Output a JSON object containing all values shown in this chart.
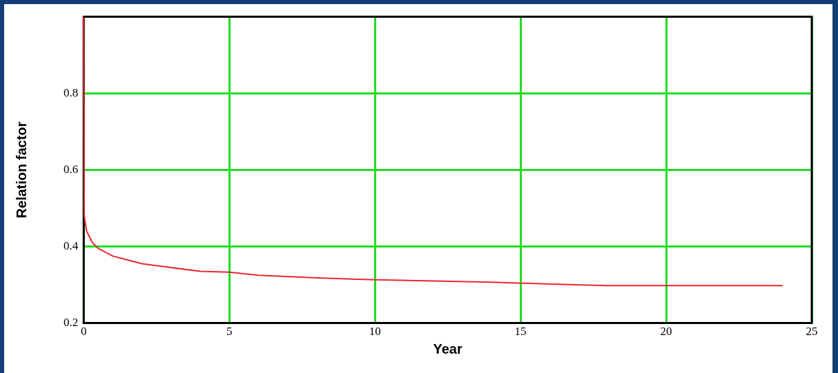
{
  "chart_data": {
    "type": "line",
    "xlabel": "Year",
    "ylabel": "Relation factor",
    "x": [
      0,
      0.02,
      0.1,
      0.3,
      0.5,
      1,
      1.5,
      2,
      3,
      4,
      5,
      6,
      8,
      10,
      12,
      14,
      16,
      18,
      20,
      24
    ],
    "series": [
      {
        "color": "#e8262e",
        "values": [
          1.0,
          0.48,
          0.44,
          0.41,
          0.395,
          0.375,
          0.365,
          0.355,
          0.345,
          0.335,
          0.333,
          0.325,
          0.318,
          0.313,
          0.31,
          0.307,
          0.302,
          0.298,
          0.298,
          0.298
        ]
      }
    ],
    "xlim": [
      0,
      25
    ],
    "xticks": [
      0,
      5,
      10,
      15,
      20,
      25
    ],
    "ylim": [
      0.2,
      1.0
    ],
    "yticks": [
      0.2,
      0.4,
      0.6,
      0.8
    ],
    "grid": true,
    "legend": false,
    "marker": "none",
    "line_style": "solid"
  }
}
